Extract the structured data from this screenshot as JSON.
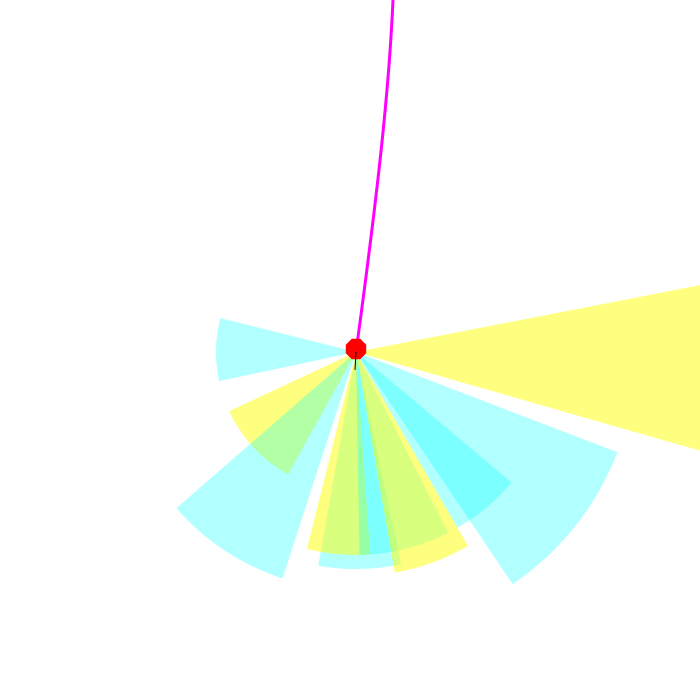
{
  "colors": {
    "background": "#ffffff",
    "cyan_sector": "#00ffff",
    "yellow_sector": "#ffff00",
    "overlap_green": "#88ff88",
    "trail": "#ff00ff",
    "agent": "#ff0000",
    "heading": "#000000"
  },
  "scene": {
    "agent": {
      "shape": "octagon"
    },
    "trail": {
      "kind": "path"
    },
    "sensor_sectors": [
      {
        "color": "cyan",
        "from_deg": 168,
        "to_deg": 194,
        "range": 1.0
      },
      {
        "color": "yellow",
        "from_deg": 119,
        "to_deg": 155,
        "range": 1.0
      },
      {
        "color": "cyan",
        "from_deg": 108,
        "to_deg": 139,
        "range": 1.7
      },
      {
        "color": "cyan",
        "from_deg": 78,
        "to_deg": 100,
        "range": 1.55
      },
      {
        "color": "yellow",
        "from_deg": 86,
        "to_deg": 104,
        "range": 1.45
      },
      {
        "color": "cyan",
        "from_deg": 63,
        "to_deg": 89,
        "range": 1.45
      },
      {
        "color": "yellow",
        "from_deg": 60,
        "to_deg": 80,
        "range": 1.6
      },
      {
        "color": "cyan",
        "from_deg": 40,
        "to_deg": 60,
        "range": 1.45
      },
      {
        "color": "cyan",
        "from_deg": 21,
        "to_deg": 56,
        "range": 2.0
      },
      {
        "color": "yellow",
        "from_deg": -11,
        "to_deg": 16,
        "range": 2.85
      }
    ]
  }
}
